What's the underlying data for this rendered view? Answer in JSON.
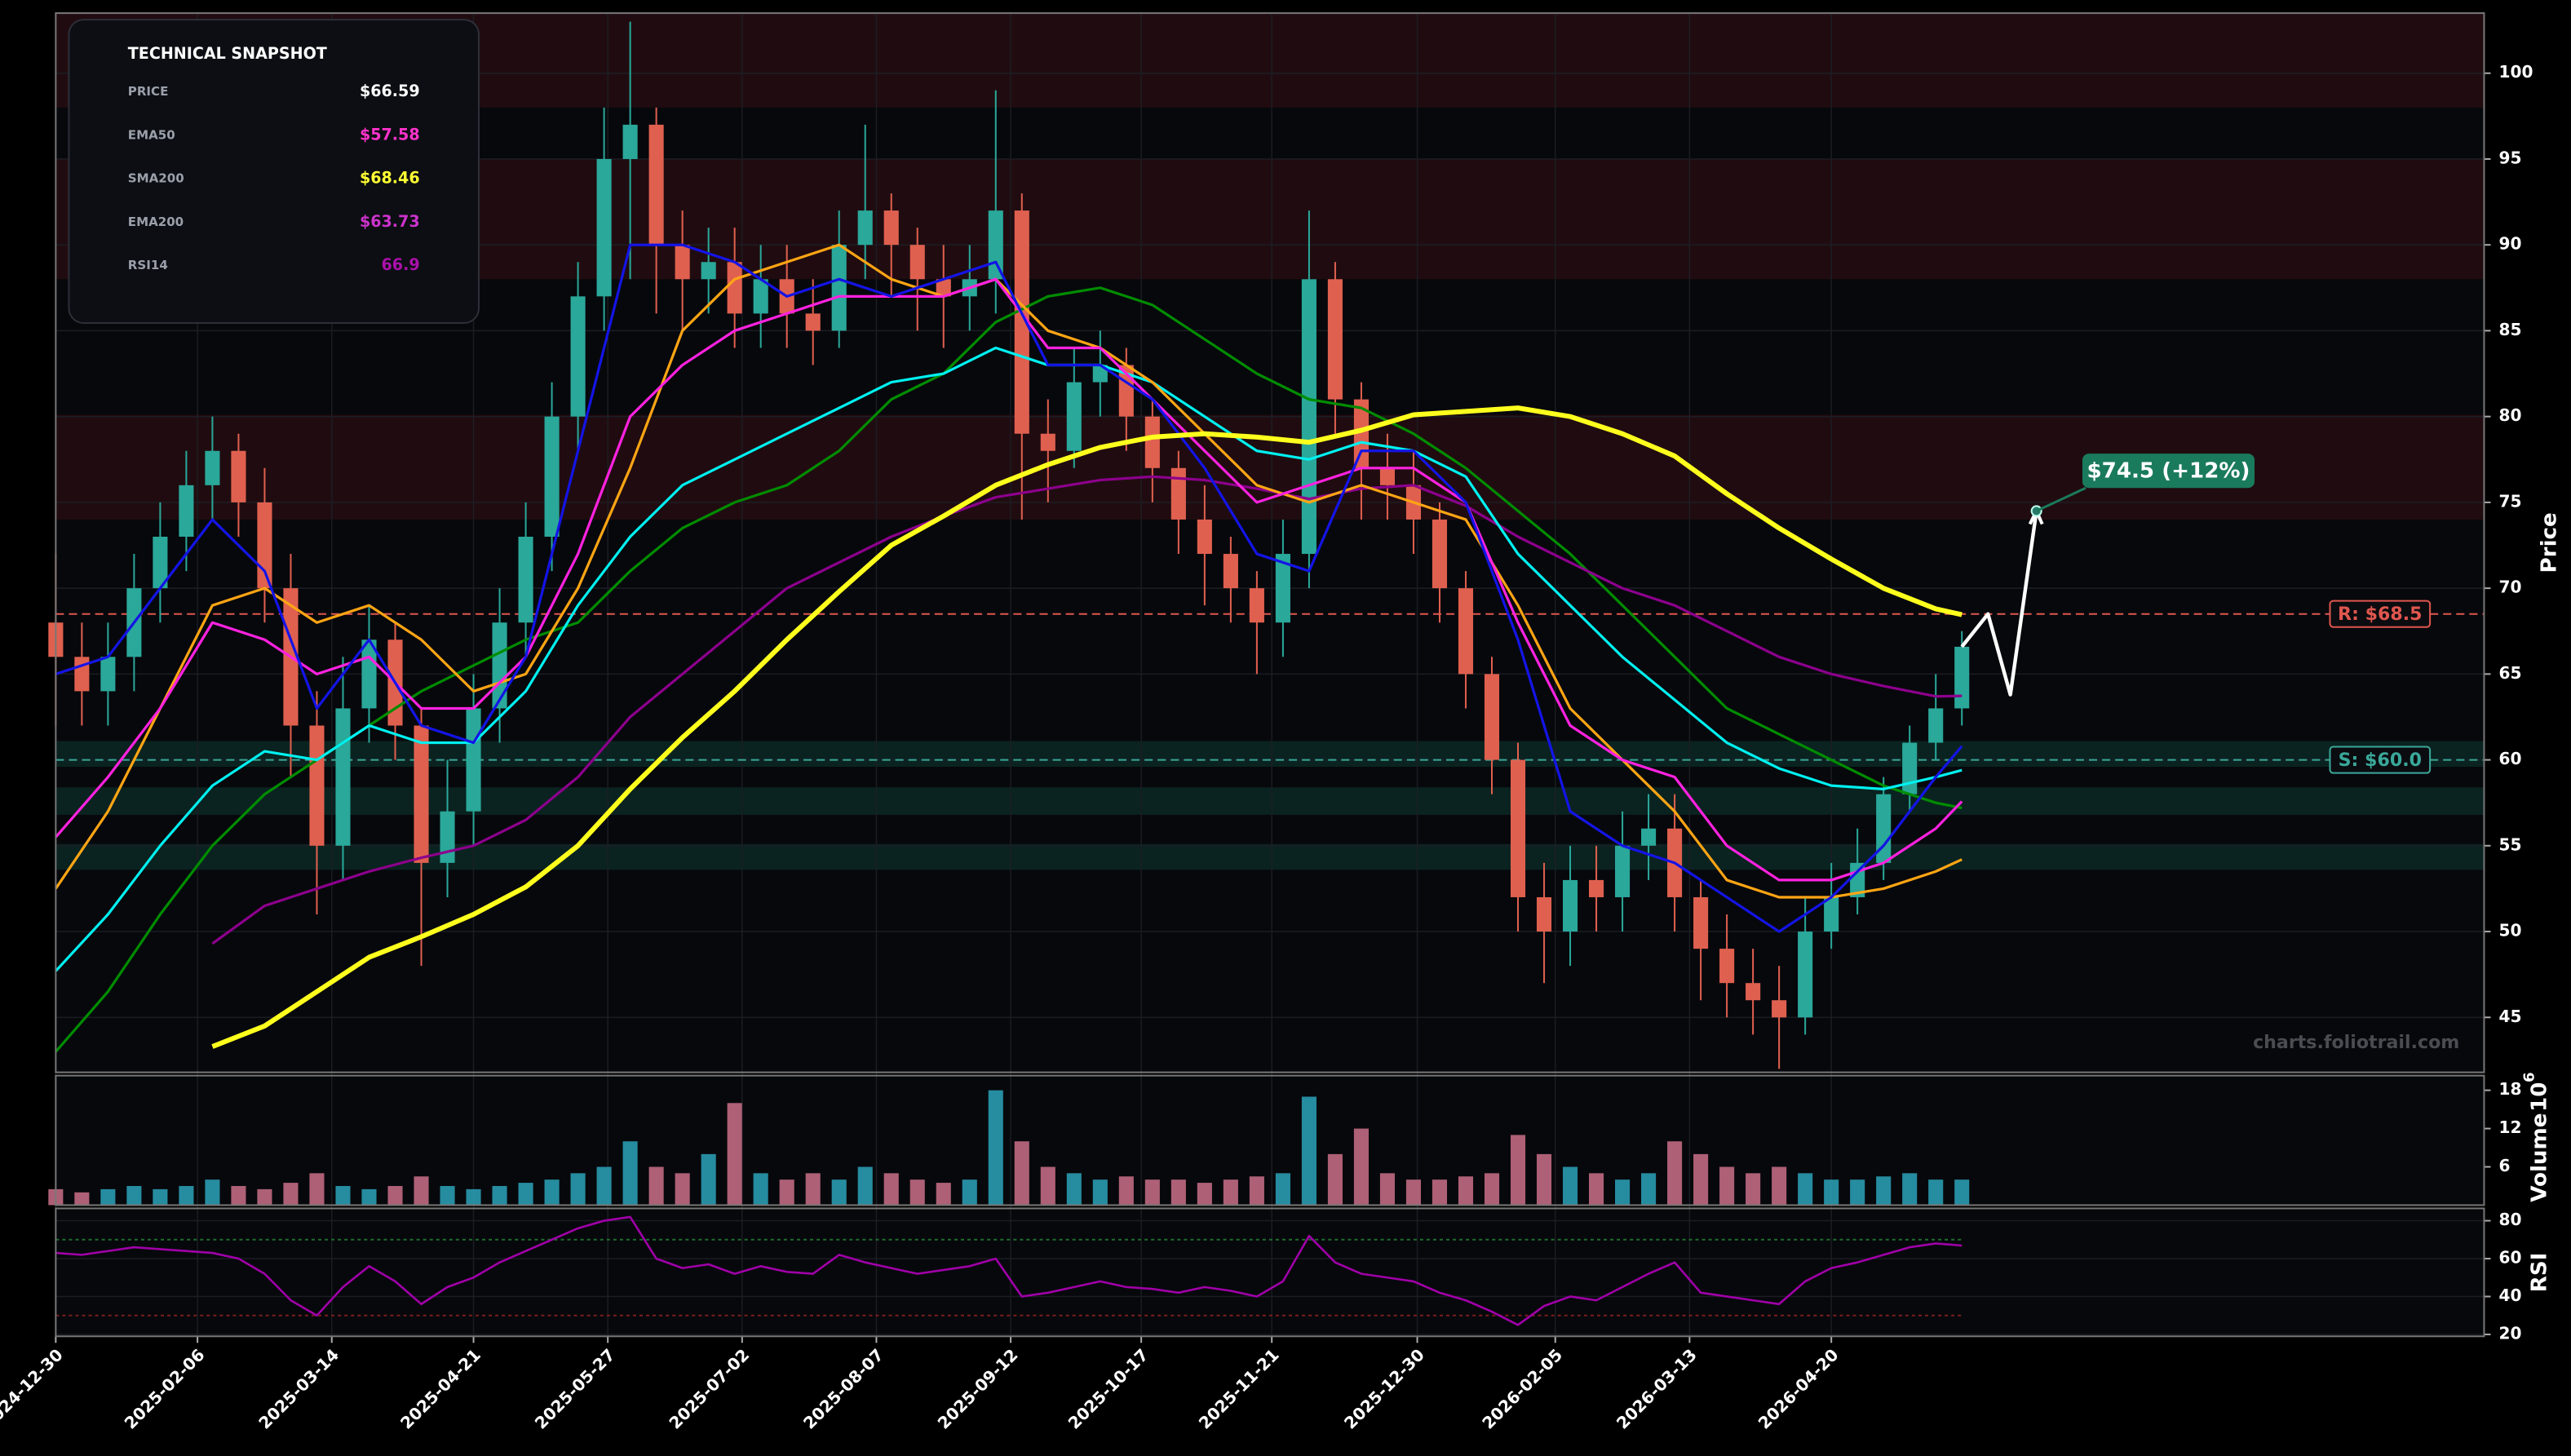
{
  "chart_data": {
    "type": "candlestick",
    "watermark": "charts.foliotrail.com",
    "y_label": "Price",
    "x": [
      "2024-12-30",
      "2025-01-06",
      "2025-01-13",
      "2025-01-20",
      "2025-01-27",
      "2025-02-03",
      "2025-02-10",
      "2025-02-17",
      "2025-02-24",
      "2025-03-03",
      "2025-03-10",
      "2025-03-17",
      "2025-03-24",
      "2025-03-31",
      "2025-04-07",
      "2025-04-14",
      "2025-04-21",
      "2025-04-28",
      "2025-05-05",
      "2025-05-12",
      "2025-05-19",
      "2025-05-26",
      "2025-06-02",
      "2025-06-09",
      "2025-06-16",
      "2025-06-23",
      "2025-06-30",
      "2025-07-07",
      "2025-07-14",
      "2025-07-21",
      "2025-07-28",
      "2025-08-04",
      "2025-08-11",
      "2025-08-18",
      "2025-08-25",
      "2025-09-01",
      "2025-09-08",
      "2025-09-15",
      "2025-09-22",
      "2025-09-29",
      "2025-10-06",
      "2025-10-13",
      "2025-10-20",
      "2025-10-27",
      "2025-11-03",
      "2025-11-10",
      "2025-11-17",
      "2025-11-24",
      "2025-12-01",
      "2025-12-08",
      "2025-12-15",
      "2025-12-22",
      "2025-12-29",
      "2026-01-05",
      "2026-01-12",
      "2026-01-19",
      "2026-01-26",
      "2026-02-02",
      "2026-02-09",
      "2026-02-16",
      "2026-02-23",
      "2026-03-02",
      "2026-03-09",
      "2026-03-16",
      "2026-03-23",
      "2026-03-30",
      "2026-04-06",
      "2026-04-13",
      "2026-04-20",
      "2026-04-27",
      "2026-05-04",
      "2026-05-11",
      "2026-05-18",
      "2026-05-25"
    ],
    "open": [
      68,
      66,
      64,
      66,
      70,
      73,
      76,
      78,
      75,
      70,
      62,
      55,
      63,
      67,
      62,
      54,
      57,
      63,
      68,
      73,
      80,
      87,
      95,
      97,
      90,
      88,
      89,
      86,
      88,
      86,
      85,
      90,
      92,
      90,
      88,
      87,
      88,
      92,
      79,
      78,
      82,
      83,
      80,
      77,
      74,
      72,
      70,
      68,
      72,
      88,
      81,
      77,
      76,
      74,
      70,
      65,
      60,
      52,
      50,
      53,
      52,
      55,
      56,
      52,
      49,
      47,
      46,
      45,
      50,
      52,
      54,
      58,
      61,
      63
    ],
    "high": [
      72,
      68,
      68,
      72,
      75,
      78,
      80,
      79,
      77,
      72,
      64,
      66,
      69,
      68,
      63,
      60,
      65,
      70,
      75,
      82,
      89,
      98,
      103,
      98,
      92,
      91,
      91,
      90,
      90,
      88,
      92,
      97,
      93,
      91,
      90,
      90,
      99,
      93,
      81,
      84,
      85,
      84,
      81,
      78,
      76,
      73,
      71,
      74,
      92,
      89,
      82,
      79,
      78,
      75,
      71,
      66,
      61,
      54,
      55,
      55,
      57,
      58,
      58,
      53,
      51,
      49,
      48,
      52,
      54,
      56,
      59,
      62,
      65,
      67.5
    ],
    "low": [
      62,
      62,
      62,
      64,
      68,
      71,
      74,
      73,
      68,
      59,
      51,
      53,
      61,
      60,
      48,
      52,
      55,
      61,
      66,
      71,
      78,
      85,
      88,
      86,
      85,
      86,
      84,
      84,
      84,
      83,
      84,
      88,
      87,
      85,
      84,
      85,
      86,
      74,
      75,
      77,
      80,
      78,
      75,
      72,
      69,
      68,
      65,
      66,
      70,
      79,
      74,
      74,
      72,
      68,
      63,
      58,
      50,
      47,
      48,
      50,
      50,
      53,
      50,
      46,
      45,
      44,
      42,
      44,
      49,
      51,
      53,
      57,
      60,
      62
    ],
    "close": [
      66,
      64,
      66,
      70,
      73,
      76,
      78,
      75,
      70,
      62,
      55,
      63,
      67,
      62,
      54,
      57,
      63,
      68,
      73,
      80,
      87,
      95,
      97,
      90,
      88,
      89,
      86,
      88,
      86,
      85,
      90,
      92,
      90,
      88,
      87,
      88,
      92,
      79,
      78,
      82,
      83,
      80,
      77,
      74,
      72,
      70,
      68,
      72,
      88,
      81,
      77,
      76,
      74,
      70,
      65,
      60,
      52,
      50,
      53,
      52,
      55,
      56,
      52,
      49,
      47,
      46,
      45,
      50,
      52,
      54,
      58,
      61,
      63,
      66.59
    ],
    "up_color": "#2aa89a",
    "down_color": "#e0604f",
    "xlim": [
      "2024-12-30",
      "2026-10-12"
    ],
    "xticks": [
      "2024-12-30",
      "2025-02-06",
      "2025-03-14",
      "2025-04-21",
      "2025-05-27",
      "2025-07-02",
      "2025-08-07",
      "2025-09-12",
      "2025-10-17",
      "2025-11-21",
      "2025-12-30",
      "2026-02-05",
      "2026-03-13",
      "2026-04-20"
    ],
    "ylim": [
      41.8,
      103.5
    ],
    "yticks": [
      45,
      50,
      55,
      60,
      65,
      70,
      75,
      80,
      85,
      90,
      95,
      100
    ],
    "grid": true,
    "resistance_zones": [
      [
        98,
        103.5
      ],
      [
        88,
        95
      ],
      [
        74,
        80.1
      ]
    ],
    "support_zones": [
      [
        59.6,
        61.1
      ],
      [
        56.8,
        58.4
      ],
      [
        53.6,
        55.1
      ]
    ],
    "levels": [
      {
        "label": "R: $68.5",
        "value": 68.5,
        "color": "#e0574f"
      },
      {
        "label": "S: $60.0",
        "value": 60.0,
        "color": "#3aa89a"
      }
    ],
    "overlays": {
      "x": [
        "2024-12-30",
        "2025-01-13",
        "2025-01-27",
        "2025-02-10",
        "2025-02-24",
        "2025-03-10",
        "2025-03-24",
        "2025-04-07",
        "2025-04-21",
        "2025-05-05",
        "2025-05-19",
        "2025-06-02",
        "2025-06-16",
        "2025-06-30",
        "2025-07-14",
        "2025-07-28",
        "2025-08-11",
        "2025-08-25",
        "2025-09-08",
        "2025-09-22",
        "2025-10-06",
        "2025-10-20",
        "2025-11-03",
        "2025-11-17",
        "2025-12-01",
        "2025-12-15",
        "2025-12-29",
        "2026-01-12",
        "2026-01-26",
        "2026-02-09",
        "2026-02-23",
        "2026-03-09",
        "2026-03-23",
        "2026-04-06",
        "2026-04-20",
        "2026-05-04",
        "2026-05-18",
        "2026-05-25"
      ],
      "series": [
        {
          "color": "#008c00",
          "values": [
            43,
            46.5,
            51,
            55,
            58,
            60,
            62,
            64,
            65.5,
            67,
            68,
            71,
            73.5,
            75,
            76,
            78,
            81,
            82.5,
            85.5,
            87,
            87.5,
            86.5,
            84.5,
            82.5,
            81,
            80.5,
            79,
            77,
            74.5,
            72,
            69,
            66,
            63,
            61.5,
            60,
            58.5,
            57.5,
            57.2
          ]
        },
        {
          "name": "EMA200",
          "color": "#8c008c",
          "values": [
            null,
            null,
            null,
            49.3,
            51.5,
            52.5,
            53.5,
            54.3,
            55,
            56.5,
            59,
            62.5,
            65,
            67.5,
            70,
            71.5,
            73,
            74.2,
            75.3,
            75.8,
            76.3,
            76.5,
            76.3,
            75.8,
            75.2,
            75.8,
            76,
            74.8,
            73,
            71.5,
            70,
            69,
            67.5,
            66,
            65,
            64.3,
            63.7,
            63.73
          ]
        },
        {
          "color": "#00f0f0",
          "values": [
            47.7,
            51,
            55,
            58.5,
            60.5,
            60,
            62,
            61,
            61,
            64,
            69,
            73,
            76,
            77.5,
            79,
            80.5,
            82,
            82.5,
            84,
            83,
            83,
            82,
            80,
            78,
            77.5,
            78.5,
            78,
            76.5,
            72,
            69,
            66,
            63.5,
            61,
            59.5,
            58.5,
            58.3,
            59,
            59.4
          ]
        },
        {
          "color": "#ffa514",
          "values": [
            52.5,
            57,
            63,
            69,
            70,
            68,
            69,
            67,
            64,
            65,
            70,
            77,
            85,
            88,
            89,
            90,
            88,
            87,
            88,
            85,
            84,
            82,
            79,
            76,
            75,
            76,
            75,
            74,
            69,
            63,
            60,
            57,
            53,
            52,
            52,
            52.5,
            53.5,
            54.2
          ]
        },
        {
          "name": "EMA50",
          "color": "#ff22e0",
          "values": [
            55.5,
            59,
            63,
            68,
            67,
            65,
            66,
            63,
            63,
            66,
            72,
            80,
            83,
            85,
            86,
            87,
            87,
            87,
            88,
            84,
            84,
            81,
            78,
            75,
            76,
            77,
            77,
            75,
            68,
            62,
            60,
            59,
            55,
            53,
            53,
            54,
            56,
            57.58
          ]
        },
        {
          "color": "#1414e6",
          "values": [
            65,
            66,
            70,
            74,
            71,
            63,
            67,
            62,
            61,
            66,
            78,
            90,
            90,
            89,
            87,
            88,
            87,
            88,
            89,
            83,
            83,
            81,
            77,
            72,
            71,
            78,
            78,
            75,
            67,
            57,
            55,
            54,
            52,
            50,
            52,
            55,
            59,
            60.8
          ]
        },
        {
          "name": "SMA200",
          "color": "#ffff1e",
          "width": 3,
          "values": [
            null,
            null,
            null,
            43.3,
            44.5,
            46.5,
            48.5,
            49.7,
            51,
            52.6,
            55,
            58.3,
            61.3,
            64,
            67,
            69.8,
            72.5,
            74.2,
            76,
            77.2,
            78.2,
            78.8,
            79,
            78.8,
            78.5,
            79.2,
            80.1,
            80.3,
            80.5,
            80,
            79,
            77.7,
            75.5,
            73.5,
            71.7,
            70,
            68.8,
            68.46
          ]
        }
      ]
    },
    "forecast": {
      "x": [
        "2026-05-25",
        "2026-06-01",
        "2026-06-07",
        "2026-06-14"
      ],
      "values": [
        66.59,
        68.5,
        63.8,
        74.5
      ],
      "color": "#ffffff",
      "label": "$74.5 (+12%)",
      "label_color": "#1a7a5c"
    },
    "volume": {
      "y_label": "Volume",
      "scale_base": "10",
      "scale_exponent": "6",
      "ylim": [
        0,
        20.3
      ],
      "yticks": [
        6,
        12,
        18
      ],
      "values": [
        2.5,
        2,
        2.5,
        3,
        2.5,
        3,
        4,
        3,
        2.5,
        3.5,
        5,
        3,
        2.5,
        3,
        4.5,
        3,
        2.5,
        3,
        3.5,
        4,
        5,
        6,
        10,
        6,
        5,
        8,
        16,
        5,
        4,
        5,
        4,
        6,
        5,
        4,
        3.5,
        4,
        18,
        10,
        6,
        5,
        4,
        4.5,
        4,
        4,
        3.5,
        4,
        4.5,
        5,
        17,
        8,
        12,
        5,
        4,
        4,
        4.5,
        5,
        11,
        8,
        6,
        5,
        4,
        5,
        10,
        8,
        6,
        5,
        6,
        5,
        4,
        4,
        4.5,
        5,
        4,
        4
      ]
    },
    "rsi": {
      "y_label": "RSI",
      "color": "#a000a8",
      "ylim": [
        19,
        86.5
      ],
      "yticks": [
        20,
        40,
        60,
        80
      ],
      "levels": [
        {
          "value": 70,
          "color": "#1e6e2e"
        },
        {
          "value": 30,
          "color": "#7a1e1e"
        }
      ],
      "values": [
        63,
        62,
        64,
        66,
        65,
        64,
        63,
        60,
        52,
        38,
        30,
        45,
        56,
        48,
        36,
        45,
        50,
        58,
        64,
        70,
        76,
        80,
        82,
        60,
        55,
        57,
        52,
        56,
        53,
        52,
        62,
        58,
        55,
        52,
        54,
        56,
        60,
        40,
        42,
        45,
        48,
        45,
        44,
        42,
        45,
        43,
        40,
        48,
        72,
        58,
        52,
        50,
        48,
        42,
        38,
        32,
        25,
        35,
        40,
        38,
        45,
        52,
        58,
        42,
        40,
        38,
        36,
        48,
        55,
        58,
        62,
        66,
        68,
        66.9
      ]
    }
  },
  "snapshot": {
    "title": "TECHNICAL SNAPSHOT",
    "rows": [
      {
        "label": "PRICE",
        "value": "$66.59",
        "color": "#ffffff"
      },
      {
        "label": "EMA50",
        "value": "$57.58",
        "color": "#ff33cc"
      },
      {
        "label": "SMA200",
        "value": "$68.46",
        "color": "#ffff33"
      },
      {
        "label": "EMA200",
        "value": "$63.73",
        "color": "#cc33cc"
      },
      {
        "label": "RSI14",
        "value": "66.9",
        "color": "#aa11aa"
      }
    ]
  }
}
